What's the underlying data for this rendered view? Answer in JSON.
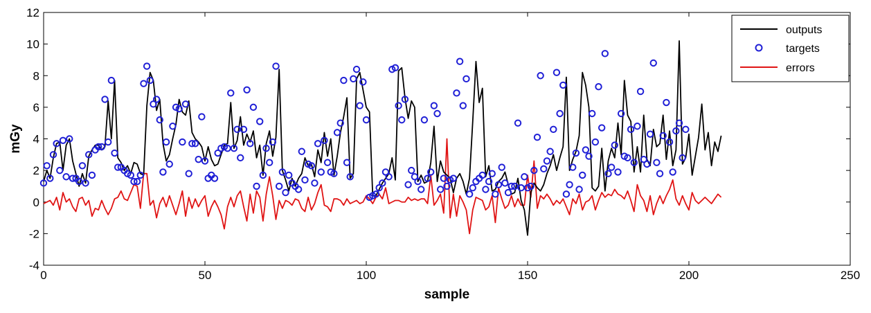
{
  "chart_data": {
    "type": "line",
    "xlabel": "sample",
    "ylabel": "mGy",
    "xlim": [
      0,
      250
    ],
    "ylim": [
      -4,
      12
    ],
    "xticks": [
      0,
      50,
      100,
      150,
      200,
      250
    ],
    "yticks": [
      -4,
      -2,
      0,
      2,
      4,
      6,
      8,
      10,
      12
    ],
    "grid": false,
    "legend_position": "top-right",
    "series": [
      {
        "name": "outputs",
        "style": "line",
        "color": "#000000",
        "values": [
          1.3,
          2.0,
          1.5,
          2.8,
          3.7,
          3.8,
          2.0,
          3.6,
          4.0,
          2.6,
          1.8,
          1.0,
          1.8,
          1.2,
          2.9,
          3.3,
          3.6,
          3.6,
          3.3,
          3.5,
          6.4,
          4.0,
          7.7,
          2.8,
          2.5,
          2.0,
          2.3,
          1.8,
          2.5,
          2.4,
          1.8,
          1.7,
          6.1,
          8.2,
          7.7,
          5.8,
          6.5,
          3.7,
          2.6,
          3.0,
          4.0,
          4.9,
          6.5,
          5.7,
          5.5,
          6.4,
          4.4,
          4.0,
          3.8,
          3.5,
          2.6,
          3.5,
          2.7,
          2.3,
          2.4,
          3.0,
          3.6,
          3.7,
          6.3,
          3.4,
          3.9,
          5.4,
          3.6,
          4.3,
          3.8,
          4.5,
          2.8,
          3.6,
          1.7,
          3.7,
          4.5,
          2.9,
          4.1,
          8.4,
          2.0,
          1.4,
          0.7,
          1.5,
          1.0,
          1.5,
          1.8,
          2.8,
          2.3,
          2.4,
          1.6,
          3.3,
          2.5,
          4.4,
          2.9,
          4.0,
          1.7,
          2.9,
          4.4,
          5.4,
          6.6,
          1.5,
          1.8,
          7.8,
          8.2,
          7.1,
          6.0,
          5.7,
          0.4,
          0.4,
          0.8,
          1.2,
          1.5,
          1.8,
          2.8,
          1.4,
          8.3,
          8.5,
          6.6,
          5.3,
          6.4,
          6.0,
          1.3,
          1.7,
          1.2,
          1.3,
          2.5,
          4.8,
          1.3,
          2.6,
          1.9,
          1.7,
          1.5,
          0.6,
          1.5,
          1.8,
          1.3,
          0.5,
          1.5,
          5.1,
          8.9,
          6.3,
          7.2,
          1.6,
          2.3,
          0.7,
          0.8,
          1.3,
          1.5,
          1.9,
          1.1,
          0.5,
          0.6,
          1.5,
          0.1,
          -0.5,
          -2.1,
          0.6,
          1.2,
          0.9,
          0.7,
          1.1,
          1.8,
          2.3,
          3.0,
          2.0,
          2.8,
          3.5,
          7.9,
          2.0,
          2.7,
          3.2,
          4.2,
          8.2,
          7.4,
          6.0,
          0.9,
          0.7,
          1.0,
          3.4,
          0.7,
          2.6,
          3.4,
          2.8,
          5.0,
          3.0,
          7.7,
          5.5,
          5.1,
          1.9,
          3.5,
          1.9,
          5.5,
          2.7,
          2.3,
          4.6,
          3.5,
          3.7,
          5.5,
          2.7,
          4.5,
          2.3,
          3.3,
          10.2,
          2.4,
          2.8,
          4.3,
          1.7,
          2.9,
          4.1,
          6.2,
          3.3,
          4.4,
          2.3,
          3.8,
          3.2,
          4.2
        ]
      },
      {
        "name": "targets",
        "style": "marker",
        "color": "#1f1fd6",
        "values": [
          1.2,
          2.3,
          1.5,
          3.0,
          3.7,
          2.0,
          3.9,
          1.6,
          4.0,
          1.5,
          1.5,
          1.3,
          2.3,
          1.2,
          3.0,
          1.7,
          3.3,
          3.5,
          3.5,
          6.5,
          3.8,
          7.7,
          3.1,
          2.2,
          2.2,
          2.0,
          1.8,
          1.7,
          1.3,
          1.3,
          1.7,
          7.5,
          8.6,
          7.7,
          6.2,
          6.5,
          5.2,
          1.9,
          3.8,
          2.4,
          4.8,
          6.0,
          5.9,
          3.8,
          6.2,
          1.8,
          3.7,
          3.7,
          2.7,
          5.4,
          2.6,
          1.5,
          1.7,
          1.5,
          3.1,
          3.4,
          3.5,
          3.4,
          6.9,
          3.4,
          4.6,
          2.8,
          4.6,
          7.1,
          3.7,
          6.0,
          1.0,
          5.1,
          1.7,
          3.4,
          2.5,
          3.8,
          8.6,
          1.0,
          1.9,
          0.6,
          1.7,
          1.2,
          1.0,
          0.8,
          3.2,
          1.4,
          2.4,
          2.3,
          1.2,
          3.7,
          1.9,
          3.9,
          2.5,
          1.9,
          1.8,
          4.4,
          5.0,
          7.7,
          2.5,
          1.6,
          7.8,
          8.4,
          6.1,
          7.6,
          5.2,
          0.3,
          0.4,
          0.5,
          0.9,
          1.2,
          1.9,
          1.6,
          8.4,
          8.5,
          6.1,
          5.2,
          6.5,
          1.1,
          2.0,
          1.6,
          1.3,
          0.8,
          5.2,
          1.5,
          1.9,
          6.1,
          5.6,
          0.8,
          1.5,
          1.0,
          1.4,
          1.5,
          6.9,
          8.9,
          6.1,
          7.8,
          0.5,
          0.9,
          1.3,
          1.5,
          1.7,
          0.8,
          1.3,
          1.8,
          0.5,
          1.1,
          2.2,
          1.2,
          0.6,
          1.0,
          1.0,
          5.0,
          0.9,
          1.6,
          0.9,
          1.0,
          2.0,
          4.1,
          8.0,
          2.1,
          2.6,
          3.2,
          4.6,
          8.2,
          5.6,
          7.4,
          0.5,
          1.1,
          2.2,
          3.1,
          0.8,
          1.7,
          3.3,
          2.9,
          5.6,
          3.8,
          7.3,
          4.7,
          9.4,
          1.8,
          2.2,
          3.6,
          1.9,
          5.6,
          2.9,
          2.8,
          4.6,
          2.5,
          4.8,
          7.0,
          2.7,
          2.4,
          4.3,
          8.8,
          2.5,
          1.8,
          4.2,
          6.3,
          3.8,
          1.9,
          4.5,
          5.0,
          2.8,
          4.6
        ]
      },
      {
        "name": "errors",
        "style": "line",
        "color": "#e01414",
        "values": [
          -0.1,
          0.0,
          0.1,
          -0.2,
          0.3,
          -0.5,
          0.6,
          0.0,
          0.2,
          -0.3,
          -0.6,
          0.2,
          0.3,
          -0.2,
          0.1,
          -0.9,
          -0.4,
          -0.5,
          0.1,
          -0.4,
          -0.8,
          -0.4,
          0.2,
          0.3,
          0.7,
          0.2,
          0.1,
          0.6,
          1.1,
          1.0,
          -0.4,
          1.8,
          1.8,
          -0.2,
          0.1,
          -1.0,
          -0.1,
          0.3,
          -0.3,
          0.4,
          -0.2,
          -0.8,
          -0.1,
          0.7,
          -0.9,
          0.3,
          -0.4,
          0.2,
          -0.3,
          0.1,
          0.4,
          -0.9,
          -0.3,
          0.1,
          -0.3,
          -0.8,
          -1.7,
          -0.3,
          0.3,
          -0.3,
          0.4,
          0.7,
          -0.3,
          -1.2,
          0.5,
          -0.7,
          0.7,
          0.3,
          -1.2,
          0.5,
          1.6,
          0.4,
          -1.1,
          0.1,
          -0.4,
          0.1,
          0.0,
          -0.2,
          0.2,
          0.1,
          -0.4,
          -0.6,
          0.3,
          -0.5,
          -0.1,
          0.6,
          1.1,
          -0.2,
          -0.3,
          -0.6,
          0.2,
          0.2,
          0.1,
          -0.2,
          0.2,
          -0.1,
          0.0,
          0.1,
          -0.1,
          0.0,
          0.4,
          0.2,
          -0.1,
          0.3,
          0.5,
          0.2,
          0.9,
          -0.1,
          0.0,
          0.1,
          0.1,
          0.0,
          0.0,
          0.3,
          0.1,
          0.2,
          0.1,
          0.2,
          0.2,
          -0.1,
          1.7,
          -0.2,
          0.1,
          0.5,
          -0.7,
          4.0,
          -1.0,
          0.5,
          -0.9,
          0.4,
          0.0,
          -0.5,
          -2.0,
          -0.5,
          0.3,
          0.2,
          0.1,
          -0.5,
          -0.3,
          0.4,
          -1.3,
          0.9,
          0.2,
          -0.4,
          -0.2,
          0.4,
          -0.3,
          0.2,
          -0.2,
          -0.2,
          1.7,
          0.3,
          2.6,
          -0.4,
          0.4,
          0.2,
          0.5,
          0.2,
          -0.2,
          0.1,
          -0.1,
          0.2,
          -0.3,
          -0.8,
          0.2,
          -0.1,
          0.5,
          -0.5,
          0.0,
          0.1,
          0.4,
          -0.5,
          0.1,
          0.6,
          0.3,
          0.5,
          0.4,
          0.8,
          0.5,
          0.4,
          0.2,
          0.7,
          0.1,
          -0.6,
          1.1,
          0.4,
          0.1,
          -0.6,
          0.4,
          -0.8,
          -0.1,
          0.4,
          -0.1,
          0.4,
          0.8,
          1.4,
          0.2,
          -0.2,
          0.4,
          -0.1,
          -0.5,
          0.6,
          0.1,
          -0.1,
          0.1,
          0.3,
          0.1,
          -0.1,
          0.2,
          0.5,
          0.3
        ]
      }
    ]
  }
}
